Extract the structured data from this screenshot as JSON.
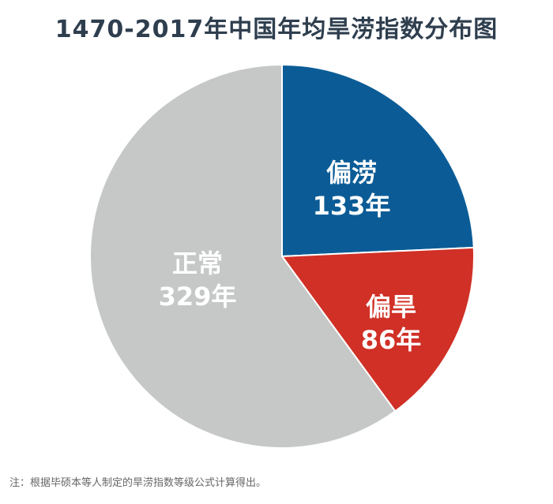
{
  "title": "1470-2017年中国年均旱涝指数分布图",
  "note": "注：根据毕硕本等人制定的旱涝指数等级公式计算得出。",
  "chart_data": {
    "type": "pie",
    "title": "1470-2017年中国年均旱涝指数分布图",
    "total": 548,
    "slices": [
      {
        "name": "偏涝",
        "value": 133,
        "label": "133年",
        "color": "#0b5c96"
      },
      {
        "name": "偏旱",
        "value": 86,
        "label": "86年",
        "color": "#d03026"
      },
      {
        "name": "正常",
        "value": 329,
        "label": "329年",
        "color": "#c6c8c8"
      }
    ],
    "start": "12 o'clock",
    "direction": "clockwise",
    "legend": "none"
  }
}
